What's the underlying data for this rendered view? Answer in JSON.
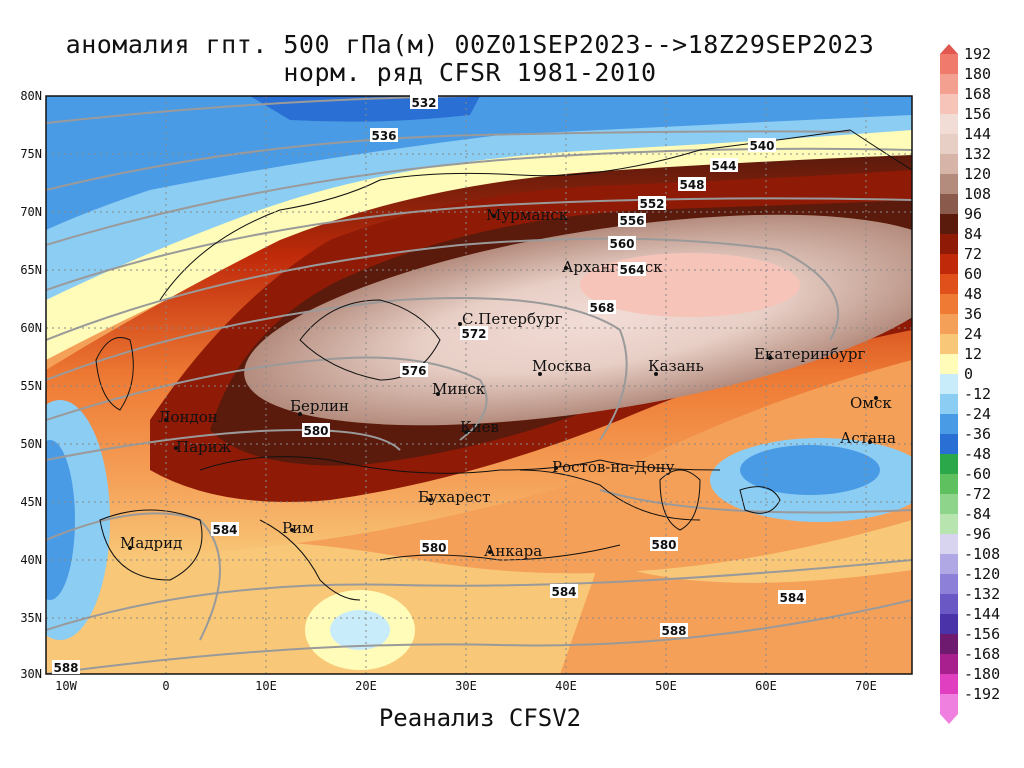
{
  "title": {
    "line1": "аномалия гпт. 500 гПа(м) 00Z01SEP2023-->18Z29SEP2023",
    "line2": "норм. ряд CFSR 1981-2010"
  },
  "footer": "Реанализ CFSV2",
  "axes": {
    "lat_labels": [
      "80N",
      "75N",
      "70N",
      "65N",
      "60N",
      "55N",
      "50N",
      "45N",
      "40N",
      "35N",
      "30N"
    ],
    "lon_labels": [
      "10W",
      "0",
      "10E",
      "20E",
      "30E",
      "40E",
      "50E",
      "60E",
      "70E"
    ]
  },
  "cities": [
    {
      "name": "Мурманск"
    },
    {
      "name": "Архангельск"
    },
    {
      "name": "С.Петербург"
    },
    {
      "name": "Москва"
    },
    {
      "name": "Казань"
    },
    {
      "name": "Екатеринбург"
    },
    {
      "name": "Минск"
    },
    {
      "name": "Берлин"
    },
    {
      "name": "Лондон"
    },
    {
      "name": "Париж"
    },
    {
      "name": "Киев"
    },
    {
      "name": "Омск"
    },
    {
      "name": "Астана"
    },
    {
      "name": "Ростов-на-Дону"
    },
    {
      "name": "Бухарест"
    },
    {
      "name": "Рим"
    },
    {
      "name": "Мадрид"
    },
    {
      "name": "Анкара"
    }
  ],
  "contour_labels": [
    "532",
    "536",
    "540",
    "544",
    "548",
    "552",
    "556",
    "560",
    "564",
    "568",
    "572",
    "576",
    "580",
    "584",
    "580",
    "580",
    "584",
    "584",
    "588",
    "588"
  ],
  "legend": {
    "values": [
      "192",
      "180",
      "168",
      "156",
      "144",
      "132",
      "120",
      "108",
      "96",
      "84",
      "72",
      "60",
      "48",
      "36",
      "24",
      "12",
      "0",
      "-12",
      "-24",
      "-36",
      "-48",
      "-60",
      "-72",
      "-84",
      "-96",
      "-108",
      "-120",
      "-132",
      "-144",
      "-156",
      "-168",
      "-180",
      "-192"
    ],
    "colors": [
      "#e0584f",
      "#f07b6c",
      "#f3a090",
      "#f6c4b8",
      "#f2dcd6",
      "#e8cfc6",
      "#d6b5a8",
      "#b48c7e",
      "#8a5a4c",
      "#5a1a0c",
      "#8f1a06",
      "#c02a0a",
      "#e0501a",
      "#ee7a34",
      "#f5a058",
      "#f8c878",
      "#fefcb8",
      "#c8ecfa",
      "#8ccdf4",
      "#4a9be6",
      "#2a6fd4",
      "#2aa84a",
      "#5ec05e",
      "#8ed48a",
      "#b8e4b0",
      "#d8d4f0",
      "#b0a8e4",
      "#8c80d8",
      "#6a58c4",
      "#4a32a8",
      "#6e1a6e",
      "#a8208e",
      "#e040c0",
      "#f080e0"
    ]
  },
  "colors": {
    "cold": "#4a9be6",
    "warm": "#e0501a",
    "anomaly_peak": "#f2dcd6"
  }
}
